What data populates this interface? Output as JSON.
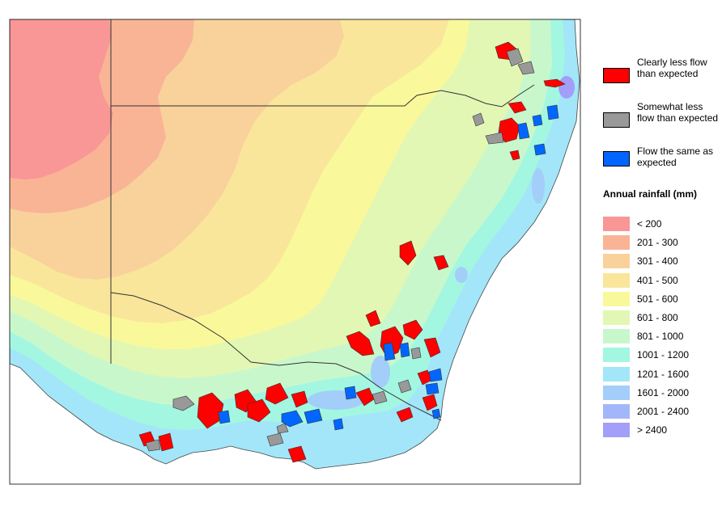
{
  "legend": {
    "flow": [
      {
        "label": "Clearly less flow than expected",
        "color": "#ff0000"
      },
      {
        "label": "Somewhat less flow than expected",
        "color": "#999999"
      },
      {
        "label": "Flow the same as expected",
        "color": "#0066ff"
      }
    ],
    "rainfall_title": "Annual rainfall (mm)",
    "rainfall": [
      {
        "label": "< 200",
        "color": "#f99696"
      },
      {
        "label": "201 - 300",
        "color": "#f9b496"
      },
      {
        "label": "301 - 400",
        "color": "#f9d29b"
      },
      {
        "label": "401 - 500",
        "color": "#f9e69b"
      },
      {
        "label": "501 - 600",
        "color": "#f9f99b"
      },
      {
        "label": "601 - 800",
        "color": "#e3f7b4"
      },
      {
        "label": "801 - 1000",
        "color": "#c9f7cc"
      },
      {
        "label": "1001 - 1200",
        "color": "#a3f7e1"
      },
      {
        "label": "1201 - 1600",
        "color": "#a3e6f9"
      },
      {
        "label": "1601 - 2000",
        "color": "#a3cef9"
      },
      {
        "label": "2001 - 2400",
        "color": "#a3b6f9"
      },
      {
        "label": "> 2400",
        "color": "#a39ef9"
      }
    ]
  }
}
